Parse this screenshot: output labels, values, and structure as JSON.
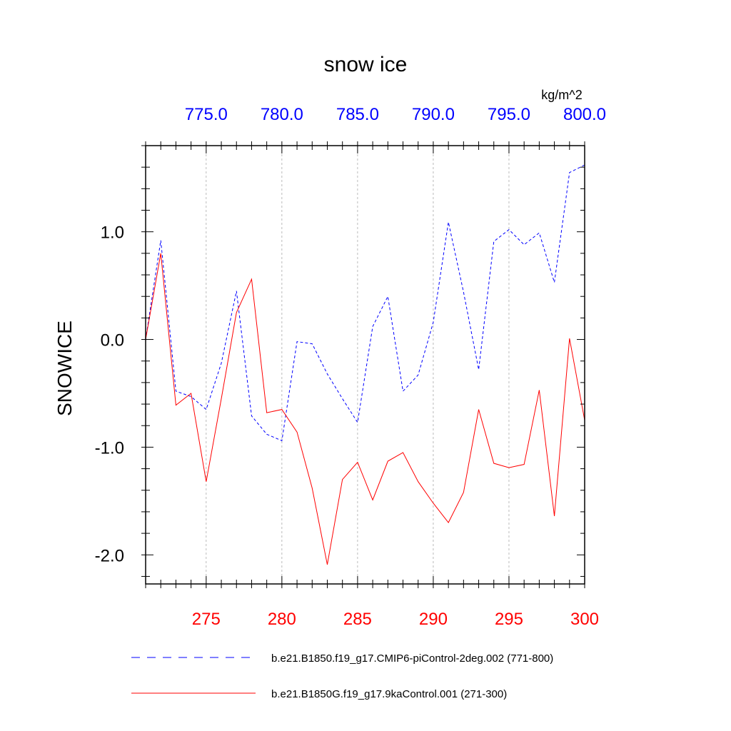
{
  "chart_data": {
    "type": "line",
    "title": "snow ice",
    "ylabel": "SNOWICE",
    "units": "kg/m^2",
    "ylim": [
      -2.27,
      1.8
    ],
    "yticks": [
      -2.0,
      -1.0,
      0.0,
      1.0
    ],
    "ytick_labels": [
      "-2.0",
      "-1.0",
      "0.0",
      "1.0"
    ],
    "bottom_axis": {
      "range": [
        271,
        300
      ],
      "ticks": [
        275,
        280,
        285,
        290,
        295,
        300
      ],
      "tick_labels": [
        "275",
        "280",
        "285",
        "290",
        "295",
        "300"
      ],
      "color": "#ff0000"
    },
    "top_axis": {
      "range": [
        771,
        800
      ],
      "ticks": [
        775,
        780,
        785,
        790,
        795,
        800
      ],
      "tick_labels": [
        "775.0",
        "780.0",
        "785.0",
        "790.0",
        "795.0",
        "800.0"
      ],
      "color": "#0000ff"
    },
    "series": [
      {
        "name": "b.e21.B1850.f19_g17.CMIP6-piControl-2deg.002 (771-800)",
        "axis": "top",
        "color": "#0000ff",
        "dash": "dashed",
        "x": [
          771,
          772,
          773,
          774,
          775,
          776,
          777,
          778,
          779,
          780,
          781,
          782,
          783,
          784,
          785,
          786,
          787,
          788,
          789,
          790,
          791,
          792,
          793,
          794,
          795,
          796,
          797,
          798,
          799,
          800
        ],
        "values": [
          0.0,
          0.92,
          -0.48,
          -0.53,
          -0.65,
          -0.22,
          0.45,
          -0.71,
          -0.88,
          -0.94,
          -0.02,
          -0.04,
          -0.32,
          -0.55,
          -0.77,
          0.12,
          0.4,
          -0.48,
          -0.33,
          0.16,
          1.09,
          0.44,
          -0.28,
          0.91,
          1.02,
          0.88,
          0.99,
          0.53,
          1.55,
          1.62
        ]
      },
      {
        "name": "b.e21.B1850G.f19_g17.9kaControl.001 (271-300)",
        "axis": "bottom",
        "color": "#ff0000",
        "dash": "solid",
        "x": [
          271,
          272,
          273,
          274,
          275,
          276,
          277,
          278,
          279,
          280,
          281,
          282,
          283,
          284,
          285,
          286,
          287,
          288,
          289,
          290,
          291,
          292,
          293,
          294,
          295,
          296,
          297,
          298,
          299,
          300
        ],
        "values": [
          0.0,
          0.8,
          -0.61,
          -0.5,
          -1.32,
          -0.55,
          0.25,
          0.56,
          -0.68,
          -0.65,
          -0.86,
          -1.38,
          -2.09,
          -1.3,
          -1.14,
          -1.49,
          -1.13,
          -1.05,
          -1.32,
          -1.52,
          -1.7,
          -1.42,
          -0.65,
          -1.15,
          -1.19,
          -1.16,
          -0.47,
          -1.64,
          0.01,
          -0.75
        ]
      }
    ],
    "vertical_gridlines": "dashed-gray"
  }
}
